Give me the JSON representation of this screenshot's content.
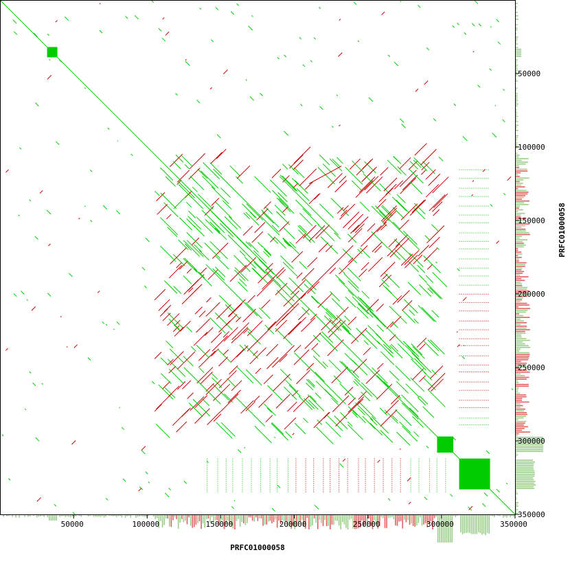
{
  "chart_data": {
    "type": "scatter",
    "title": "",
    "xlabel": "PRFC01000058",
    "ylabel": "PRFC01000058",
    "xlim": [
      0,
      350000
    ],
    "ylim": [
      0,
      350000
    ],
    "y_axis_inverted": true,
    "y_axis_position": "right",
    "x_ticks": [
      50000,
      100000,
      150000,
      200000,
      250000,
      300000,
      350000
    ],
    "y_ticks": [
      50000,
      100000,
      150000,
      200000,
      250000,
      300000,
      350000
    ],
    "x_tick_labels": [
      "50000",
      "100000",
      "150000",
      "200000",
      "250000",
      "300000",
      "350000"
    ],
    "y_tick_labels": [
      "50000",
      "100000",
      "150000",
      "200000",
      "250000",
      "300000",
      "350000"
    ],
    "grid": false,
    "legend": "none",
    "colors": {
      "forward": "#00cc00",
      "reverse": "#cc0000",
      "coverage_forward": "#9acd8a",
      "coverage_reverse": "#e06060",
      "frame": "#000000"
    },
    "series": [
      {
        "name": "",
        "orientation": "forward",
        "segments": [
          [
            [
              0,
              0
            ],
            [
              350000,
              350000
            ]
          ],
          [
            [
              118000,
              142000
            ],
            [
              128000,
              132000
            ]
          ],
          [
            [
              128000,
              132000
            ],
            [
              138000,
              142000
            ]
          ],
          [
            [
              145000,
              115000
            ],
            [
              190000,
              160000
            ]
          ],
          [
            [
              155000,
              160000
            ],
            [
              200000,
              205000
            ]
          ],
          [
            [
              140000,
              180000
            ],
            [
              175000,
              215000
            ]
          ],
          [
            [
              190000,
              120000
            ],
            [
              230000,
              160000
            ]
          ],
          [
            [
              230000,
              190000
            ],
            [
              270000,
              230000
            ]
          ],
          [
            [
              255000,
              140000
            ],
            [
              285000,
              170000
            ]
          ],
          [
            [
              200000,
              240000
            ],
            [
              235000,
              275000
            ]
          ],
          [
            [
              125000,
              250000
            ],
            [
              150000,
              275000
            ]
          ],
          [
            [
              160000,
              270000
            ],
            [
              180000,
              290000
            ]
          ]
        ],
        "blocks": [
          {
            "x": [
              32000,
              39000
            ],
            "y": [
              32000,
              39000
            ]
          },
          {
            "x": [
              297000,
              308000
            ],
            "y": [
              297000,
              308000
            ]
          },
          {
            "x": [
              312000,
              333000
            ],
            "y": [
              312000,
              333000
            ]
          }
        ]
      },
      {
        "name": "",
        "orientation": "reverse",
        "segments": [
          [
            [
              240000,
              167000
            ],
            [
              168000,
              239000
            ]
          ],
          [
            [
              210000,
              125000
            ],
            [
              232000,
              113000
            ]
          ],
          [
            [
              185000,
              250000
            ],
            [
              200000,
              235000
            ]
          ],
          [
            [
              265000,
              175000
            ],
            [
              278000,
              162000
            ]
          ],
          [
            [
              150000,
              280000
            ],
            [
              162000,
              268000
            ]
          ],
          [
            [
              228000,
              290000
            ],
            [
              245000,
              273000
            ]
          ]
        ],
        "blocks": []
      }
    ]
  }
}
